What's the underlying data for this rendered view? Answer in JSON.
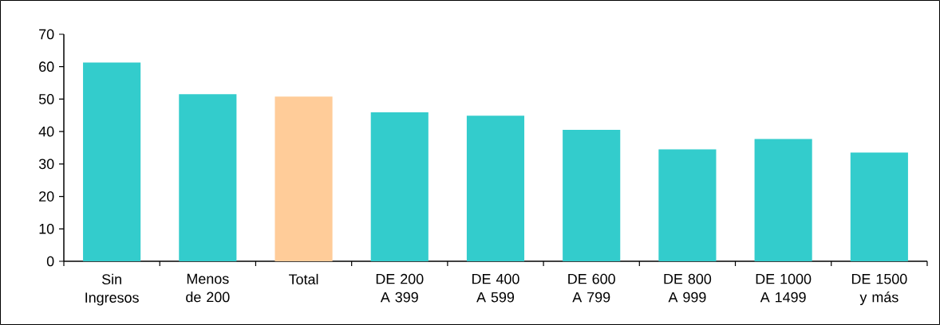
{
  "chart_data": {
    "type": "bar",
    "categories": [
      "Sin Ingresos",
      "Menos de 200",
      "Total",
      "DE 200 A 399",
      "DE 400 A 599",
      "DE 600 A 799",
      "DE 800 A 999",
      "DE 1000 A 1499",
      "DE 1500 y más"
    ],
    "values": [
      61.3,
      51.5,
      50.8,
      45.9,
      44.9,
      40.5,
      34.5,
      37.7,
      33.5
    ],
    "colors": [
      "#33cccc",
      "#33cccc",
      "#ffcc99",
      "#33cccc",
      "#33cccc",
      "#33cccc",
      "#33cccc",
      "#33cccc",
      "#33cccc"
    ],
    "ylim": [
      0,
      70
    ],
    "yticks": [
      0,
      10,
      20,
      30,
      40,
      50,
      60,
      70
    ],
    "grid": false
  }
}
